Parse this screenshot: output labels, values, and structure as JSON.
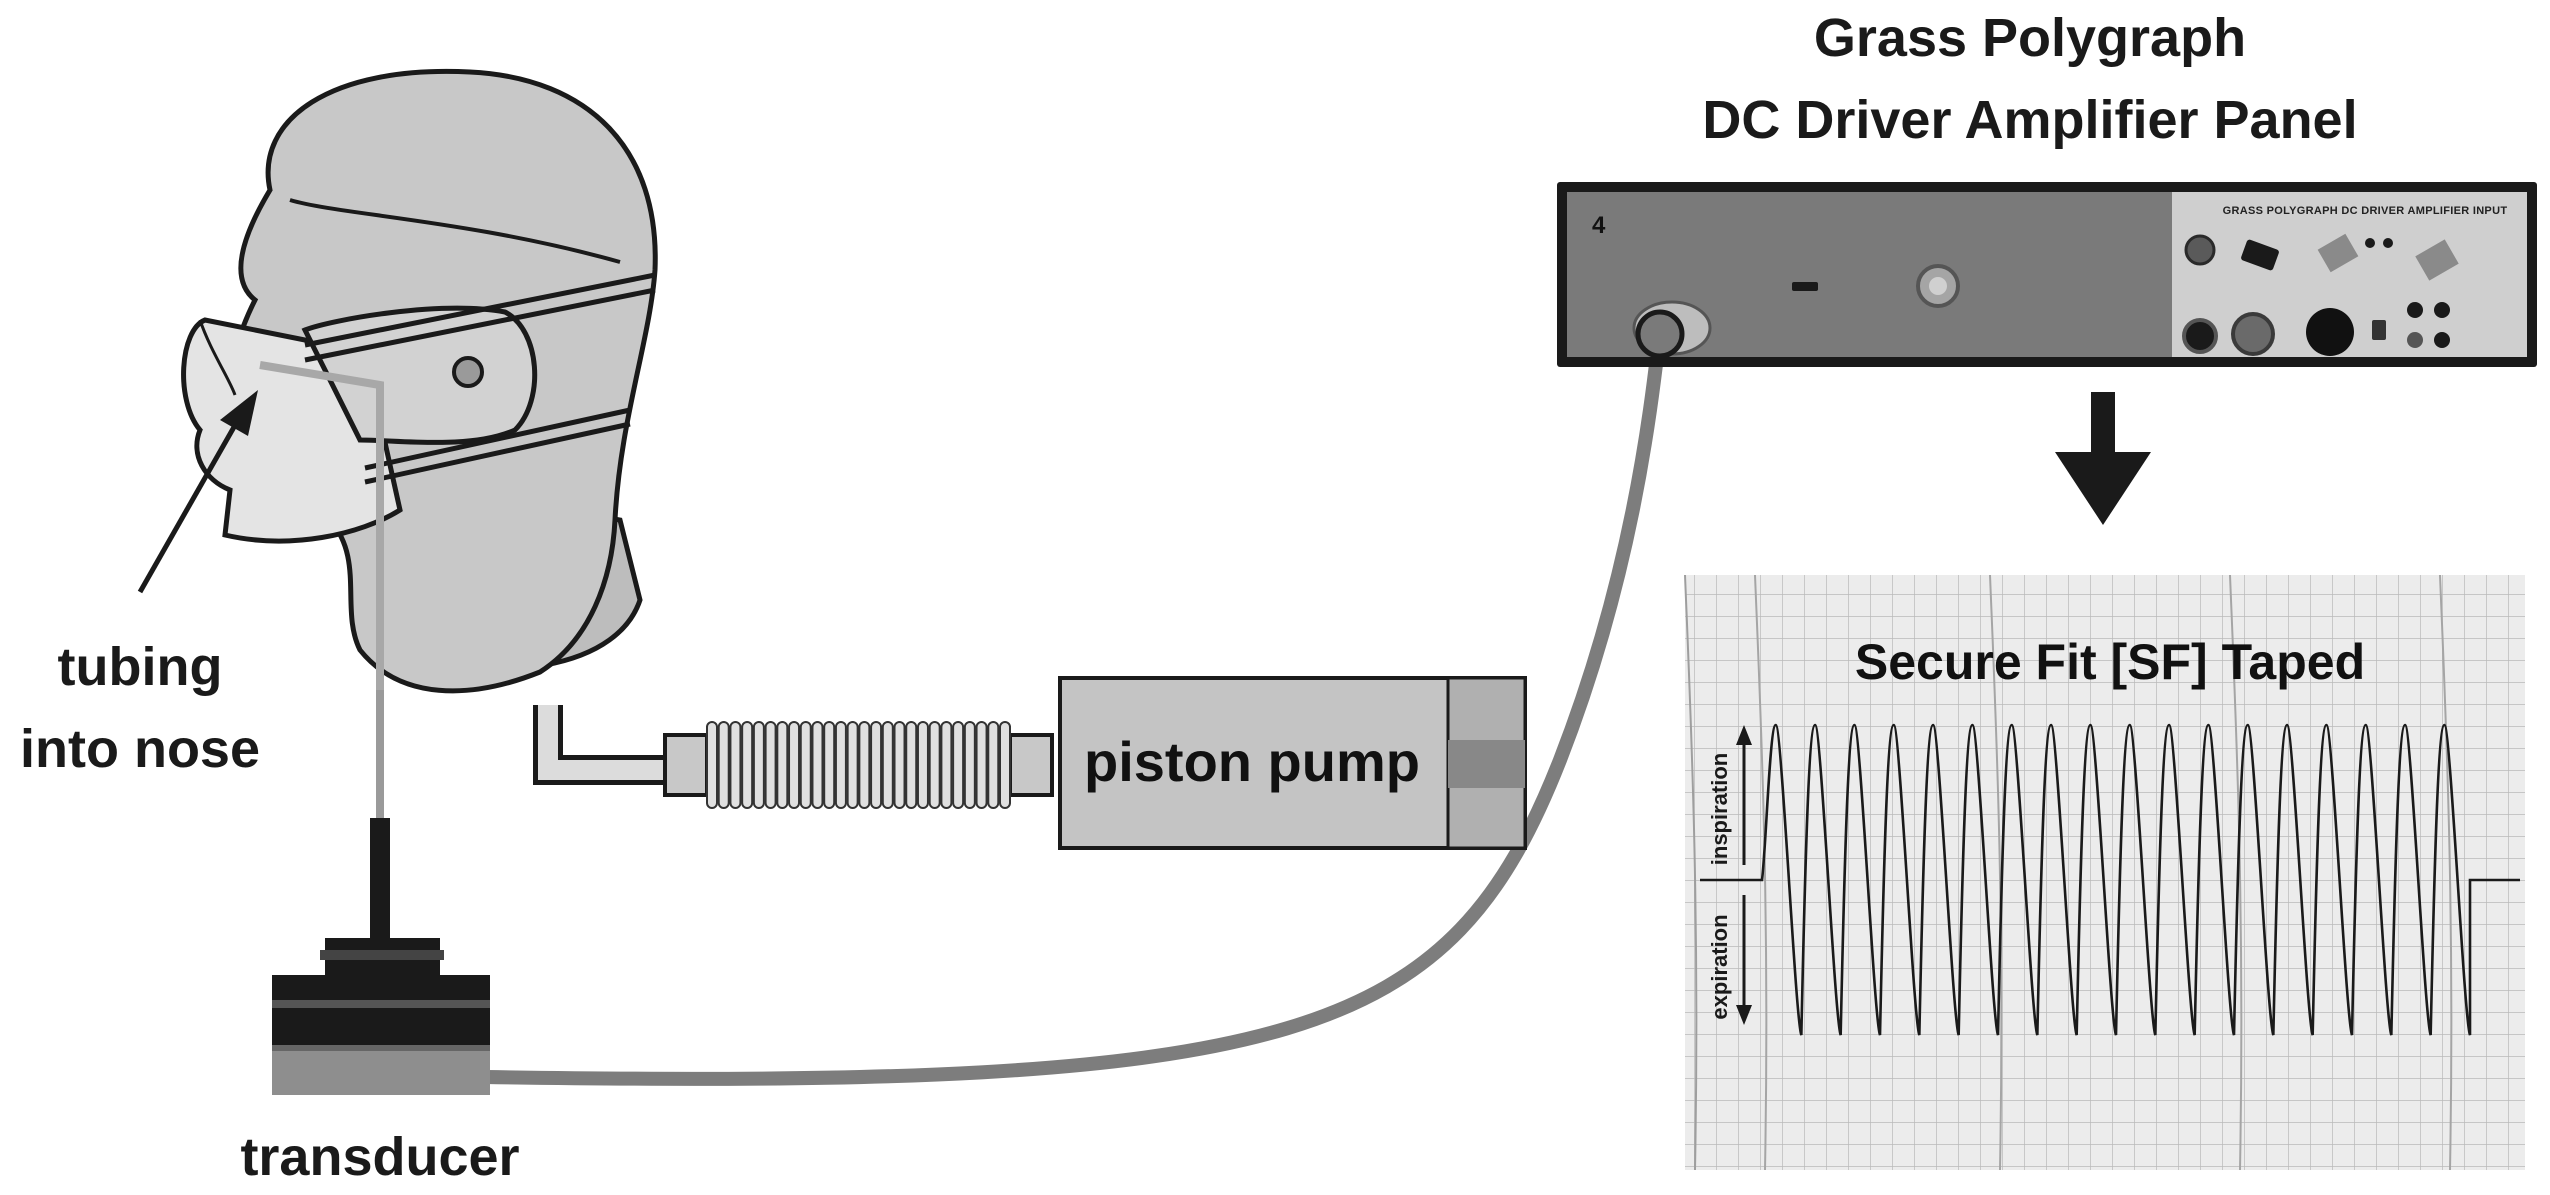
{
  "title": {
    "line1": "Grass Polygraph",
    "line2": "DC Driver Amplifier Panel"
  },
  "labels": {
    "tubing_line1": "tubing",
    "tubing_line2": "into nose",
    "transducer": "transducer",
    "piston_pump": "piston pump"
  },
  "amplifier_panel": {
    "channel_number": "4",
    "input_label": "GRASS POLYGRAPH DC DRIVER AMPLIFIER INPUT"
  },
  "chart": {
    "title": "Secure Fit [SF] Taped",
    "upper_axis_label": "inspiration",
    "lower_axis_label": "expiration"
  },
  "chart_data": {
    "type": "line",
    "title": "Secure Fit [SF] Taped",
    "xlabel": "",
    "ylabel": "",
    "cycles": 18,
    "description_units": "relative deflection (baseline 0, inspiration up, expiration down)",
    "peak": 1.0,
    "trough": -1.0,
    "grid": true
  },
  "colors": {
    "tube": "#7d7d7d",
    "dark": "#1a1a1a",
    "head_fill": "#c8c8c8",
    "mask_fill": "#e4e4e4",
    "panel_fill": "#7a7a7a",
    "paper": "#ececec"
  }
}
